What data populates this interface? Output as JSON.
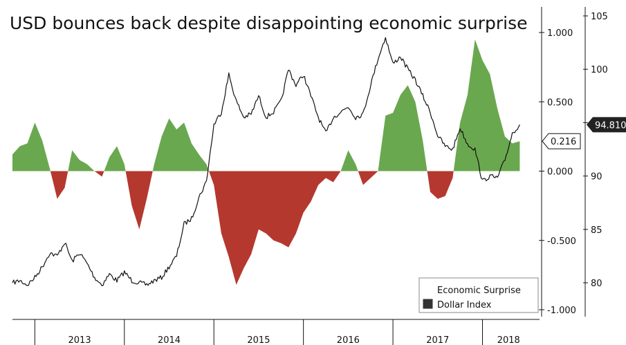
{
  "chart_data": {
    "type": "area",
    "title": "USD bounces back despite disappointing economic surprise",
    "x_categories": [
      "2013",
      "2014",
      "2015",
      "2016",
      "2017",
      "2018"
    ],
    "x_range": [
      "2012-10",
      "2018-08"
    ],
    "y_left": {
      "ticks": [
        "1.000",
        "0.500",
        "0.000",
        "-0.500",
        "-1.000"
      ],
      "range": [
        -1.0,
        1.0
      ]
    },
    "y_right": {
      "ticks": [
        "105",
        "100",
        "95",
        "90",
        "85",
        "80"
      ],
      "range": [
        78.5,
        106
      ]
    },
    "colors": {
      "positive": "#6aa84f",
      "negative": "#b5382f",
      "line": "#111111",
      "callout_fill": "#222222"
    },
    "series": [
      {
        "name": "Economic Surprise",
        "axis": "left",
        "style": "area",
        "points": [
          [
            "2012-10",
            0.12
          ],
          [
            "2012-11",
            0.18
          ],
          [
            "2012-12",
            0.2
          ],
          [
            "2013-01",
            0.35
          ],
          [
            "2013-02",
            0.22
          ],
          [
            "2013-03",
            0.02
          ],
          [
            "2013-04",
            -0.2
          ],
          [
            "2013-05",
            -0.12
          ],
          [
            "2013-06",
            0.15
          ],
          [
            "2013-07",
            0.08
          ],
          [
            "2013-08",
            0.05
          ],
          [
            "2013-09",
            0.0
          ],
          [
            "2013-10",
            -0.04
          ],
          [
            "2013-11",
            0.1
          ],
          [
            "2013-12",
            0.18
          ],
          [
            "2014-01",
            0.05
          ],
          [
            "2014-02",
            -0.25
          ],
          [
            "2014-03",
            -0.42
          ],
          [
            "2014-04",
            -0.2
          ],
          [
            "2014-05",
            0.05
          ],
          [
            "2014-06",
            0.25
          ],
          [
            "2014-07",
            0.38
          ],
          [
            "2014-08",
            0.3
          ],
          [
            "2014-09",
            0.35
          ],
          [
            "2014-10",
            0.2
          ],
          [
            "2014-11",
            0.12
          ],
          [
            "2014-12",
            0.05
          ],
          [
            "2015-01",
            -0.1
          ],
          [
            "2015-02",
            -0.45
          ],
          [
            "2015-03",
            -0.62
          ],
          [
            "2015-04",
            -0.82
          ],
          [
            "2015-05",
            -0.7
          ],
          [
            "2015-06",
            -0.6
          ],
          [
            "2015-07",
            -0.42
          ],
          [
            "2015-08",
            -0.45
          ],
          [
            "2015-09",
            -0.5
          ],
          [
            "2015-10",
            -0.52
          ],
          [
            "2015-11",
            -0.55
          ],
          [
            "2015-12",
            -0.45
          ],
          [
            "2016-01",
            -0.3
          ],
          [
            "2016-02",
            -0.22
          ],
          [
            "2016-03",
            -0.1
          ],
          [
            "2016-04",
            -0.05
          ],
          [
            "2016-05",
            -0.08
          ],
          [
            "2016-06",
            0.0
          ],
          [
            "2016-07",
            0.15
          ],
          [
            "2016-08",
            0.05
          ],
          [
            "2016-09",
            -0.1
          ],
          [
            "2016-10",
            -0.05
          ],
          [
            "2016-11",
            0.0
          ],
          [
            "2016-12",
            0.4
          ],
          [
            "2017-01",
            0.42
          ],
          [
            "2017-02",
            0.55
          ],
          [
            "2017-03",
            0.62
          ],
          [
            "2017-04",
            0.5
          ],
          [
            "2017-05",
            0.22
          ],
          [
            "2017-06",
            -0.15
          ],
          [
            "2017-07",
            -0.2
          ],
          [
            "2017-08",
            -0.18
          ],
          [
            "2017-09",
            -0.05
          ],
          [
            "2017-10",
            0.35
          ],
          [
            "2017-11",
            0.55
          ],
          [
            "2017-12",
            0.95
          ],
          [
            "2018-01",
            0.8
          ],
          [
            "2018-02",
            0.7
          ],
          [
            "2018-03",
            0.45
          ],
          [
            "2018-04",
            0.25
          ],
          [
            "2018-05",
            0.2
          ],
          [
            "2018-06",
            0.216
          ]
        ]
      },
      {
        "name": "Dollar Index",
        "axis": "right",
        "style": "line",
        "points": [
          [
            "2012-10",
            80.0
          ],
          [
            "2012-11",
            80.2
          ],
          [
            "2012-12",
            79.8
          ],
          [
            "2013-01",
            80.5
          ],
          [
            "2013-02",
            81.5
          ],
          [
            "2013-03",
            82.8
          ],
          [
            "2013-04",
            82.5
          ],
          [
            "2013-05",
            83.8
          ],
          [
            "2013-06",
            82.0
          ],
          [
            "2013-07",
            82.8
          ],
          [
            "2013-08",
            81.8
          ],
          [
            "2013-09",
            80.5
          ],
          [
            "2013-10",
            79.8
          ],
          [
            "2013-11",
            80.8
          ],
          [
            "2013-12",
            80.2
          ],
          [
            "2014-01",
            81.0
          ],
          [
            "2014-02",
            80.2
          ],
          [
            "2014-03",
            80.0
          ],
          [
            "2014-04",
            79.8
          ],
          [
            "2014-05",
            80.2
          ],
          [
            "2014-06",
            80.5
          ],
          [
            "2014-07",
            81.5
          ],
          [
            "2014-08",
            82.5
          ],
          [
            "2014-09",
            85.5
          ],
          [
            "2014-10",
            86.0
          ],
          [
            "2014-11",
            88.0
          ],
          [
            "2014-12",
            89.5
          ],
          [
            "2015-01",
            94.8
          ],
          [
            "2015-02",
            96.0
          ],
          [
            "2015-03",
            99.5
          ],
          [
            "2015-04",
            97.0
          ],
          [
            "2015-05",
            95.5
          ],
          [
            "2015-06",
            95.8
          ],
          [
            "2015-07",
            97.5
          ],
          [
            "2015-08",
            95.5
          ],
          [
            "2015-09",
            96.0
          ],
          [
            "2015-10",
            97.0
          ],
          [
            "2015-11",
            100.0
          ],
          [
            "2015-12",
            98.5
          ],
          [
            "2016-01",
            99.5
          ],
          [
            "2016-02",
            97.5
          ],
          [
            "2016-03",
            95.5
          ],
          [
            "2016-04",
            94.0
          ],
          [
            "2016-05",
            95.5
          ],
          [
            "2016-06",
            96.0
          ],
          [
            "2016-07",
            96.5
          ],
          [
            "2016-08",
            95.5
          ],
          [
            "2016-09",
            95.8
          ],
          [
            "2016-10",
            98.5
          ],
          [
            "2016-11",
            101.0
          ],
          [
            "2016-12",
            103.0
          ],
          [
            "2017-01",
            100.5
          ],
          [
            "2017-02",
            101.2
          ],
          [
            "2017-03",
            100.0
          ],
          [
            "2017-04",
            99.0
          ],
          [
            "2017-05",
            97.5
          ],
          [
            "2017-06",
            96.0
          ],
          [
            "2017-07",
            93.8
          ],
          [
            "2017-08",
            92.8
          ],
          [
            "2017-09",
            92.5
          ],
          [
            "2017-10",
            94.5
          ],
          [
            "2017-11",
            93.0
          ],
          [
            "2017-12",
            92.5
          ],
          [
            "2018-01",
            89.5
          ],
          [
            "2018-02",
            90.0
          ],
          [
            "2018-03",
            89.8
          ],
          [
            "2018-04",
            91.5
          ],
          [
            "2018-05",
            94.0
          ],
          [
            "2018-06",
            94.81
          ]
        ]
      }
    ],
    "callouts": [
      {
        "axis": "right",
        "value": 94.81,
        "label": "94.810",
        "style": "dark"
      },
      {
        "axis": "left",
        "value": 0.216,
        "label": "0.216",
        "style": "light"
      }
    ],
    "legend": {
      "placement": "bottom-right",
      "items": [
        {
          "label": "Economic Surprise",
          "swatch": "#ffffff"
        },
        {
          "label": "Dollar Index",
          "swatch": "#333333"
        }
      ]
    },
    "grid": false
  }
}
